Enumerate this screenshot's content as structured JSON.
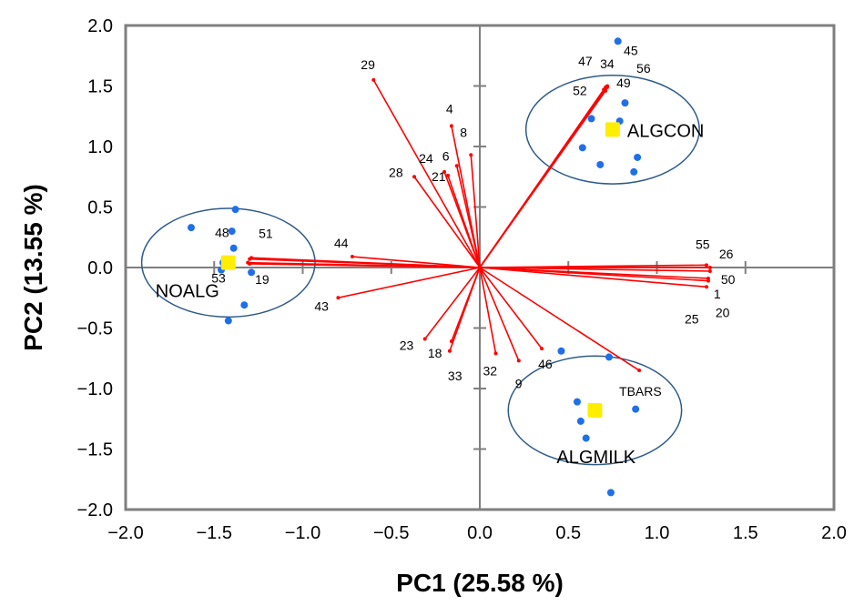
{
  "chart_data": {
    "type": "scatter",
    "title": "",
    "xlabel": "PC1 (25.58 %)",
    "ylabel": "PC2 (13.55 %)",
    "xlim": [
      -2.0,
      2.0
    ],
    "ylim": [
      -2.0,
      2.0
    ],
    "grid": false,
    "x_ticks": [
      "−2.0",
      "−1.5",
      "−1.0",
      "−0.5",
      "0.0",
      "0.5",
      "1.0",
      "1.5",
      "2.0"
    ],
    "y_ticks": [
      "2.0",
      "1.5",
      "1.0",
      "0.5",
      "0.0",
      "−0.5",
      "−1.0",
      "−1.5",
      "−2.0"
    ],
    "colors": {
      "vectors": "#ff0000",
      "scores": "#1f6fe8",
      "centroids": "#ffee00",
      "circles": "#2e5a8a"
    },
    "loadings": [
      {
        "label": "29",
        "x": -0.6,
        "y": 1.55
      },
      {
        "label": "4",
        "x": -0.16,
        "y": 1.17
      },
      {
        "label": "8",
        "x": -0.05,
        "y": 0.93
      },
      {
        "label": "6",
        "x": -0.13,
        "y": 0.84
      },
      {
        "label": "24",
        "x": -0.2,
        "y": 0.79
      },
      {
        "label": "21",
        "x": -0.18,
        "y": 0.76
      },
      {
        "label": "28",
        "x": -0.37,
        "y": 0.75
      },
      {
        "label": "44",
        "x": -0.72,
        "y": 0.09
      },
      {
        "label": "43",
        "x": -0.8,
        "y": -0.25
      },
      {
        "label": "23",
        "x": -0.31,
        "y": -0.59
      },
      {
        "label": "18",
        "x": -0.16,
        "y": -0.61
      },
      {
        "label": "33",
        "x": -0.17,
        "y": -0.69
      },
      {
        "label": "32",
        "x": 0.09,
        "y": -0.71
      },
      {
        "label": "9",
        "x": 0.22,
        "y": -0.77
      },
      {
        "label": "46",
        "x": 0.35,
        "y": -0.67
      },
      {
        "label": "TBARS",
        "x": 0.9,
        "y": -0.85
      },
      {
        "label": "55",
        "x": 1.28,
        "y": 0.02
      },
      {
        "label": "26",
        "x": 1.3,
        "y": 0.0
      },
      {
        "label": "50",
        "x": 1.3,
        "y": -0.03
      },
      {
        "label": "1",
        "x": 1.29,
        "y": -0.09
      },
      {
        "label": "25",
        "x": 1.28,
        "y": -0.16
      },
      {
        "label": "20",
        "x": 1.29,
        "y": -0.11
      },
      {
        "label": "47",
        "x": 0.71,
        "y": 1.49
      },
      {
        "label": "34",
        "x": 0.71,
        "y": 1.48
      },
      {
        "label": "52",
        "x": 0.7,
        "y": 1.47
      },
      {
        "label": "45",
        "x": 0.72,
        "y": 1.5
      },
      {
        "label": "56",
        "x": 0.72,
        "y": 1.49
      },
      {
        "label": "49",
        "x": 0.71,
        "y": 1.46
      },
      {
        "label": "48",
        "x": -1.3,
        "y": 0.07
      },
      {
        "label": "51",
        "x": -1.29,
        "y": 0.08
      },
      {
        "label": "53",
        "x": -1.31,
        "y": 0.04
      },
      {
        "label": "19",
        "x": -1.3,
        "y": 0.03
      }
    ],
    "groups": [
      {
        "name": "NOALG",
        "centroid": [
          -1.42,
          0.04
        ],
        "radius": 0.68,
        "points": [
          [
            -1.63,
            0.33
          ],
          [
            -1.38,
            0.48
          ],
          [
            -1.4,
            0.3
          ],
          [
            -1.39,
            0.16
          ],
          [
            -1.45,
            0.04
          ],
          [
            -1.46,
            -0.02
          ],
          [
            -1.29,
            -0.04
          ],
          [
            -1.33,
            -0.31
          ],
          [
            -1.42,
            -0.44
          ]
        ]
      },
      {
        "name": "ALGCON",
        "centroid": [
          0.75,
          1.14
        ],
        "radius": 0.68,
        "points": [
          [
            0.78,
            1.87
          ],
          [
            0.82,
            1.36
          ],
          [
            0.63,
            1.23
          ],
          [
            0.79,
            1.21
          ],
          [
            0.58,
            0.99
          ],
          [
            0.89,
            0.91
          ],
          [
            0.68,
            0.85
          ],
          [
            0.87,
            0.79
          ]
        ]
      },
      {
        "name": "ALGMILK",
        "centroid": [
          0.65,
          -1.18
        ],
        "radius": 0.68,
        "points": [
          [
            0.73,
            -0.74
          ],
          [
            0.46,
            -0.69
          ],
          [
            0.55,
            -1.11
          ],
          [
            0.88,
            -1.17
          ],
          [
            0.57,
            -1.27
          ],
          [
            0.6,
            -1.41
          ],
          [
            0.74,
            -1.86
          ]
        ]
      }
    ],
    "group_label_positions": [
      "below-left",
      "right",
      "below"
    ]
  }
}
